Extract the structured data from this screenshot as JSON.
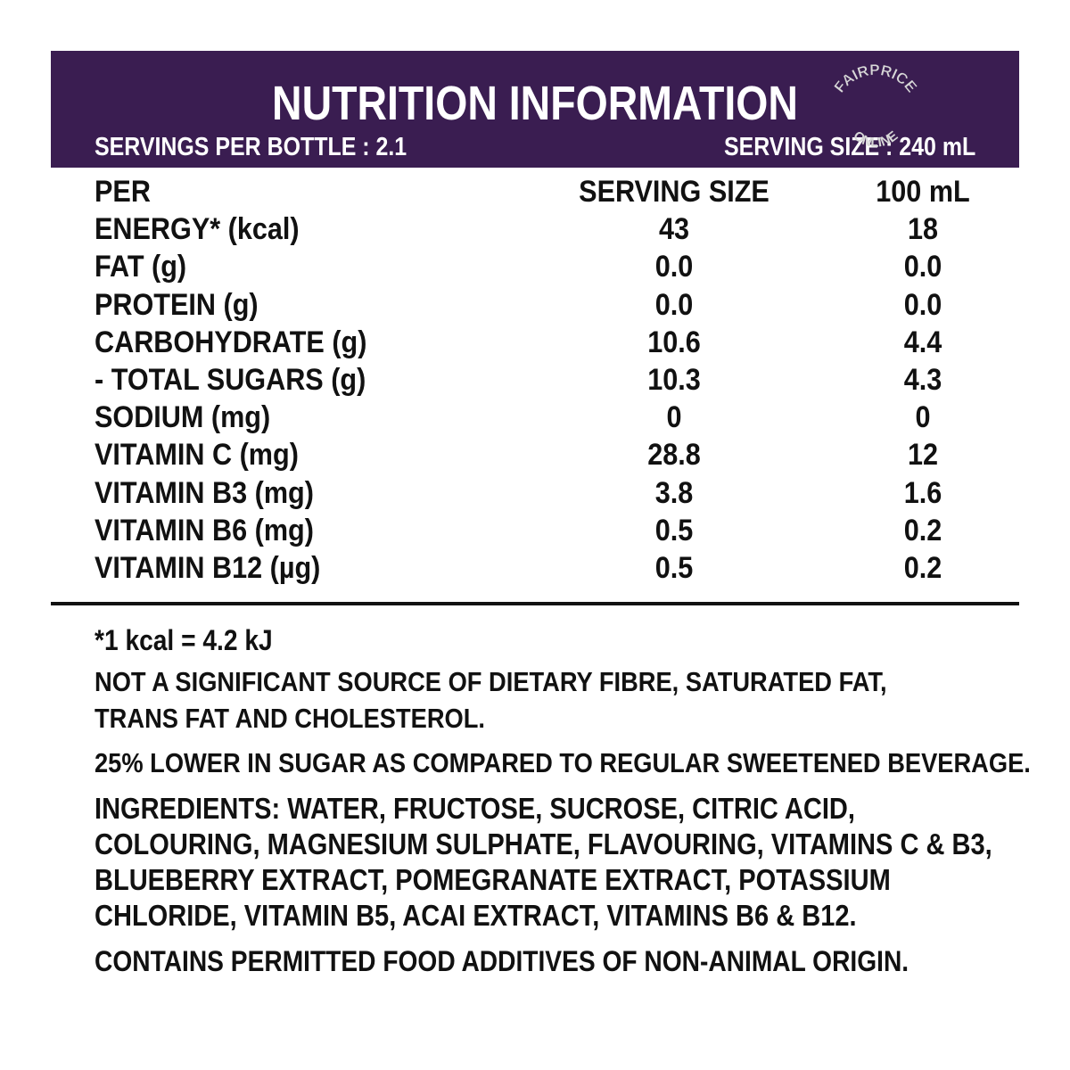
{
  "header": {
    "title": "NUTRITION INFORMATION",
    "servings_per_bottle": "SERVINGS PER BOTTLE : 2.1",
    "serving_size": "SERVING SIZE : 240 mL",
    "watermark_line1": "FAIRPRICE",
    "watermark_line2": "ONLINE"
  },
  "table": {
    "columns": [
      "PER",
      "SERVING SIZE",
      "100 mL"
    ],
    "rows": [
      {
        "label": "ENERGY* (kcal)",
        "serving": "43",
        "per100": "18"
      },
      {
        "label": "FAT (g)",
        "serving": "0.0",
        "per100": "0.0"
      },
      {
        "label": "PROTEIN (g)",
        "serving": "0.0",
        "per100": "0.0"
      },
      {
        "label": "CARBOHYDRATE (g)",
        "serving": "10.6",
        "per100": "4.4"
      },
      {
        "label": "- TOTAL SUGARS (g)",
        "serving": "10.3",
        "per100": "4.3"
      },
      {
        "label": "SODIUM (mg)",
        "serving": "0",
        "per100": "0"
      },
      {
        "label": "VITAMIN C (mg)",
        "serving": "28.8",
        "per100": "12"
      },
      {
        "label": "VITAMIN B3 (mg)",
        "serving": "3.8",
        "per100": "1.6"
      },
      {
        "label": "VITAMIN B6 (mg)",
        "serving": "0.5",
        "per100": "0.2"
      },
      {
        "label": "VITAMIN B12 (µg)",
        "serving": "0.5",
        "per100": "0.2"
      }
    ]
  },
  "notes": {
    "kcal": "*1 kcal = 4.2 kJ",
    "fibre_line1": "NOT A SIGNIFICANT SOURCE OF DIETARY FIBRE, SATURATED FAT,",
    "fibre_line2": "TRANS FAT AND CHOLESTEROL.",
    "sugar": "25% LOWER IN SUGAR AS COMPARED TO REGULAR SWEETENED BEVERAGE.",
    "ingredients_line1": "INGREDIENTS: WATER, FRUCTOSE, SUCROSE, CITRIC ACID,",
    "ingredients_line2": "COLOURING, MAGNESIUM SULPHATE, FLAVOURING, VITAMINS C & B3,",
    "ingredients_line3": "BLUEBERRY EXTRACT, POMEGRANATE EXTRACT, POTASSIUM",
    "ingredients_line4": "CHLORIDE, VITAMIN B5, ACAI EXTRACT, VITAMINS B6 & B12.",
    "additives": "CONTAINS PERMITTED FOOD ADDITIVES OF NON-ANIMAL ORIGIN."
  },
  "colors": {
    "header_bg": "#3a1d51",
    "header_text": "#ffffff",
    "body_text": "#111111"
  }
}
